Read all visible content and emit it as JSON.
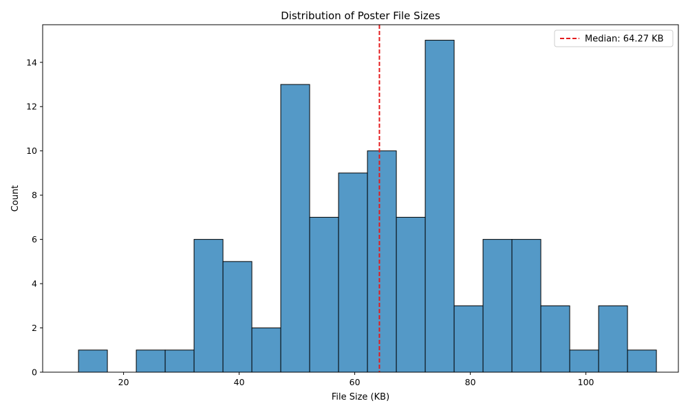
{
  "chart_data": {
    "type": "bar",
    "title": "Distribution of Poster File Sizes",
    "xlabel": "File Size (KB)",
    "ylabel": "Count",
    "xlim": [
      6,
      116
    ],
    "ylim": [
      0,
      15.7
    ],
    "xticks": [
      20,
      40,
      60,
      80,
      100
    ],
    "yticks": [
      0,
      2,
      4,
      6,
      8,
      10,
      12,
      14
    ],
    "bin_edges": [
      12.2,
      17.2,
      22.2,
      27.2,
      32.2,
      37.2,
      42.2,
      47.2,
      52.2,
      57.2,
      62.2,
      67.2,
      72.2,
      77.2,
      82.2,
      87.2,
      92.2,
      97.2,
      102.2,
      107.2,
      112.2
    ],
    "values": [
      1,
      0,
      1,
      1,
      6,
      5,
      2,
      13,
      7,
      9,
      10,
      7,
      15,
      3,
      6,
      6,
      3,
      1,
      3,
      1
    ],
    "bar_color": "#5499c7",
    "median": {
      "value": 64.27,
      "label": "Median: 64.27 KB",
      "color": "#e41a1c"
    },
    "legend_position": "top-right",
    "grid": false
  }
}
